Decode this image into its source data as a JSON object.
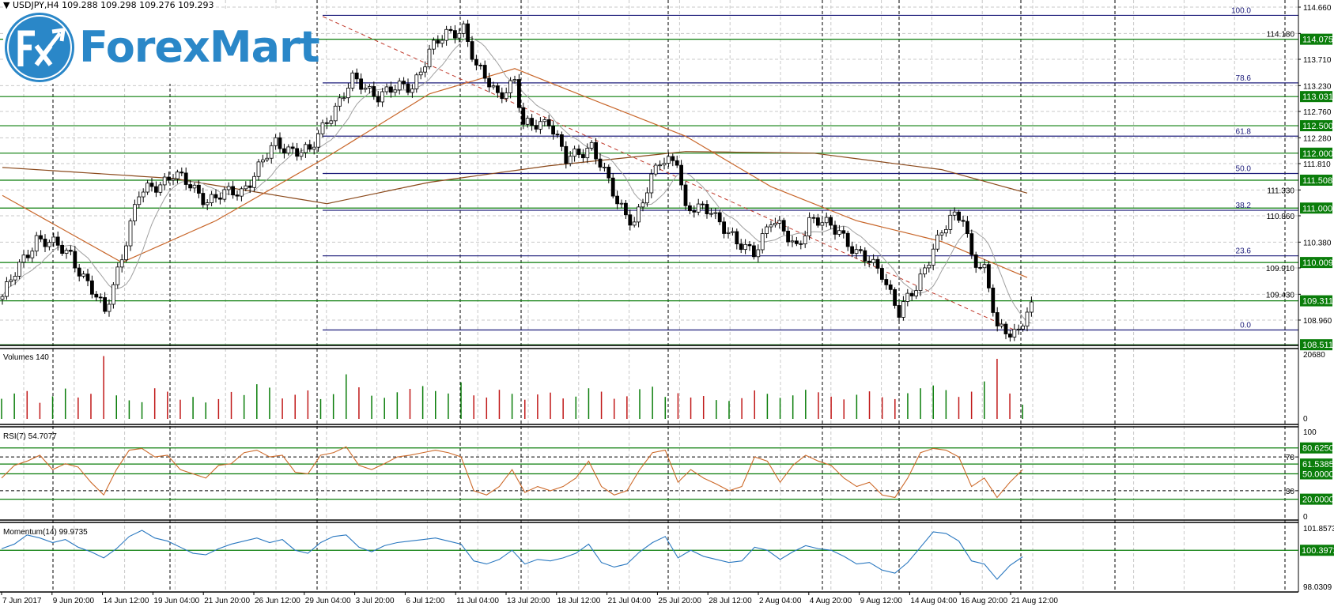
{
  "header": {
    "symbol": "USDJPY,H4",
    "ohlc": "109.288 109.298 109.276 109.293"
  },
  "logo": {
    "text": "ForexMart",
    "mark": "Fx"
  },
  "colors": {
    "level_green": "#0a7d0a",
    "fib_blue": "#1c1c7a",
    "trend_red": "#c0392b",
    "ma_slow": "#8b4a1c",
    "ma_mid": "#c8662a",
    "ma_fast": "#a0a0a0",
    "rsi": "#cd6a2a",
    "momentum": "#2a78c0",
    "vol_up": "#0a7d0a",
    "vol_down": "#c01818"
  },
  "price_axis": {
    "ticks": [
      "114.660",
      "114.180",
      "113.710",
      "113.230",
      "112.760",
      "112.280",
      "111.810",
      "111.330",
      "110.860",
      "110.380",
      "109.910",
      "109.430",
      "108.960"
    ]
  },
  "levels": [
    114.075,
    113.031,
    112.5,
    112.0,
    111.508,
    111.0,
    110.009,
    109.311,
    108.511
  ],
  "level_labels": [
    "114.075",
    "113.031",
    "112.500",
    "112.000",
    "111.508",
    "111.000",
    "110.009",
    "109.311",
    "108.511"
  ],
  "fibonacci": [
    {
      "label": "100.0",
      "price": 114.51
    },
    {
      "label": "78.6",
      "price": 113.28
    },
    {
      "label": "61.8",
      "price": 112.31
    },
    {
      "label": "50.0",
      "price": 111.63
    },
    {
      "label": "38.2",
      "price": 110.96
    },
    {
      "label": "23.6",
      "price": 110.13
    },
    {
      "label": "0.0",
      "price": 108.78
    }
  ],
  "time_axis": {
    "labels": [
      "7 Jun 2017",
      "9 Jun 20:00",
      "14 Jun 12:00",
      "19 Jun 04:00",
      "21 Jun 20:00",
      "26 Jun 12:00",
      "29 Jun 04:00",
      "3 Jul 20:00",
      "6 Jul 12:00",
      "11 Jul 04:00",
      "13 Jul 20:00",
      "18 Jul 12:00",
      "21 Jul 04:00",
      "25 Jul 20:00",
      "28 Jul 12:00",
      "2 Aug 04:00",
      "4 Aug 20:00",
      "9 Aug 12:00",
      "14 Aug 04:00",
      "16 Aug 20:00",
      "21 Aug 12:00"
    ]
  },
  "chart_data": [
    {
      "type": "candlestick",
      "title": "USDJPY,H4",
      "price_path": [
        [
          0,
          109.39
        ],
        [
          8,
          110.47
        ],
        [
          16,
          110.16
        ],
        [
          24,
          109.08
        ],
        [
          28,
          110.16
        ],
        [
          32,
          111.23
        ],
        [
          40,
          111.62
        ],
        [
          48,
          111.16
        ],
        [
          56,
          111.31
        ],
        [
          64,
          112.16
        ],
        [
          72,
          112.0
        ],
        [
          76,
          112.62
        ],
        [
          82,
          113.31
        ],
        [
          88,
          113.08
        ],
        [
          96,
          113.23
        ],
        [
          100,
          113.85
        ],
        [
          104,
          114.15
        ],
        [
          108,
          114.31
        ],
        [
          111,
          113.54
        ],
        [
          116,
          113.08
        ],
        [
          120,
          113.31
        ],
        [
          122,
          112.46
        ],
        [
          128,
          112.62
        ],
        [
          132,
          111.85
        ],
        [
          138,
          112.16
        ],
        [
          144,
          111.08
        ],
        [
          148,
          110.77
        ],
        [
          154,
          111.85
        ],
        [
          158,
          111.93
        ],
        [
          160,
          110.93
        ],
        [
          166,
          111.0
        ],
        [
          172,
          110.31
        ],
        [
          176,
          110.23
        ],
        [
          180,
          110.77
        ],
        [
          186,
          110.31
        ],
        [
          189,
          110.77
        ],
        [
          196,
          110.62
        ],
        [
          200,
          110.16
        ],
        [
          206,
          109.85
        ],
        [
          210,
          109.08
        ],
        [
          214,
          109.54
        ],
        [
          218,
          110.31
        ],
        [
          222,
          110.77
        ],
        [
          225,
          110.85
        ],
        [
          227,
          110.16
        ],
        [
          230,
          109.85
        ],
        [
          233,
          108.78
        ],
        [
          238,
          108.78
        ],
        [
          241,
          109.29
        ]
      ],
      "ma_mid": [
        [
          0,
          111.23
        ],
        [
          28,
          110.01
        ],
        [
          50,
          110.77
        ],
        [
          76,
          111.93
        ],
        [
          100,
          113.08
        ],
        [
          120,
          113.54
        ],
        [
          140,
          112.92
        ],
        [
          160,
          112.31
        ],
        [
          180,
          111.39
        ],
        [
          200,
          110.77
        ],
        [
          220,
          110.39
        ],
        [
          242,
          109.67
        ]
      ],
      "ma_slow": [
        [
          0,
          111.74
        ],
        [
          40,
          111.54
        ],
        [
          76,
          111.08
        ],
        [
          100,
          111.47
        ],
        [
          128,
          111.77
        ],
        [
          160,
          112.03
        ],
        [
          190,
          112.0
        ],
        [
          220,
          111.7
        ],
        [
          242,
          111.23
        ]
      ],
      "trendline": [
        [
          75,
          114.49
        ],
        [
          237,
          108.78
        ]
      ],
      "ylim": [
        108.5,
        114.7
      ]
    },
    {
      "type": "bar",
      "title": "Volumes 140",
      "ylim": [
        0,
        20680
      ],
      "yticks": [
        "20680",
        "0"
      ],
      "values": [
        6500,
        8200,
        9000,
        5200,
        7300,
        9800,
        6900,
        8100,
        20300,
        7600,
        6000,
        5400,
        9900,
        8800,
        6200,
        7100,
        5300,
        6400,
        8700,
        7700,
        11200,
        10100,
        6600,
        7800,
        9200,
        6400,
        8000,
        14400,
        10200,
        7500,
        6800,
        8600,
        9700,
        10600,
        9000,
        8200,
        11800,
        7600,
        6900,
        9400,
        8100,
        6200,
        7900,
        8500,
        6600,
        7200,
        9900,
        8800,
        6500,
        7300,
        9600,
        10400,
        7100,
        8300,
        6900,
        7400,
        6100,
        5800,
        6700,
        9200,
        8100,
        6800,
        7600,
        9400,
        8600,
        7200,
        6300,
        7800,
        8900,
        7000,
        6400,
        8300,
        9900,
        10800,
        9300,
        7100,
        8800,
        12100,
        19400,
        8200,
        4600
      ]
    },
    {
      "type": "line",
      "title": "RSI(7) 54.7077",
      "ylim": [
        0,
        100
      ],
      "yticks": [
        "100",
        "70",
        "30",
        "0"
      ],
      "levels": [
        {
          "value": 80.625,
          "label": "80.6250"
        },
        {
          "value": 61.5385,
          "label": "61.5385"
        },
        {
          "value": 50,
          "label": "50.0000"
        },
        {
          "value": 20,
          "label": "20.0000"
        }
      ],
      "values": [
        45,
        60,
        65,
        72,
        55,
        62,
        58,
        40,
        25,
        55,
        78,
        80,
        70,
        72,
        55,
        50,
        45,
        60,
        62,
        75,
        78,
        70,
        72,
        52,
        50,
        72,
        75,
        82,
        60,
        55,
        62,
        70,
        72,
        75,
        78,
        75,
        70,
        30,
        25,
        35,
        55,
        28,
        35,
        30,
        35,
        45,
        65,
        35,
        25,
        30,
        55,
        75,
        78,
        40,
        55,
        45,
        38,
        30,
        35,
        70,
        65,
        40,
        60,
        72,
        65,
        60,
        45,
        35,
        40,
        25,
        22,
        45,
        75,
        80,
        78,
        70,
        35,
        45,
        22,
        40,
        55
      ]
    },
    {
      "type": "line",
      "title": "Momentum(14) 99.9735",
      "ylim": [
        98.0309,
        101.8573
      ],
      "yticks": [
        "101.8573",
        "98.0309"
      ],
      "levels": [
        {
          "value": 100.3972,
          "label": "100.3972"
        }
      ],
      "values": [
        100.5,
        100.8,
        101.4,
        101.2,
        100.9,
        101.1,
        100.6,
        100.3,
        99.9,
        100.5,
        101.3,
        101.7,
        101.2,
        101.0,
        100.6,
        100.2,
        100.1,
        100.5,
        100.8,
        101.0,
        101.2,
        100.9,
        101.1,
        100.4,
        100.2,
        100.9,
        101.3,
        101.4,
        100.6,
        100.3,
        100.7,
        100.9,
        101.0,
        101.1,
        101.2,
        101.0,
        100.8,
        99.7,
        99.5,
        99.8,
        100.4,
        99.5,
        99.8,
        99.7,
        99.9,
        100.2,
        100.8,
        99.6,
        99.3,
        99.5,
        100.3,
        100.9,
        101.3,
        99.9,
        100.4,
        100.0,
        99.8,
        99.6,
        99.7,
        100.6,
        100.4,
        99.8,
        100.3,
        100.7,
        100.5,
        100.4,
        100.0,
        99.5,
        99.6,
        99.1,
        98.9,
        99.6,
        100.6,
        101.6,
        101.5,
        101.0,
        99.7,
        99.5,
        98.5,
        99.4,
        99.97
      ]
    }
  ]
}
